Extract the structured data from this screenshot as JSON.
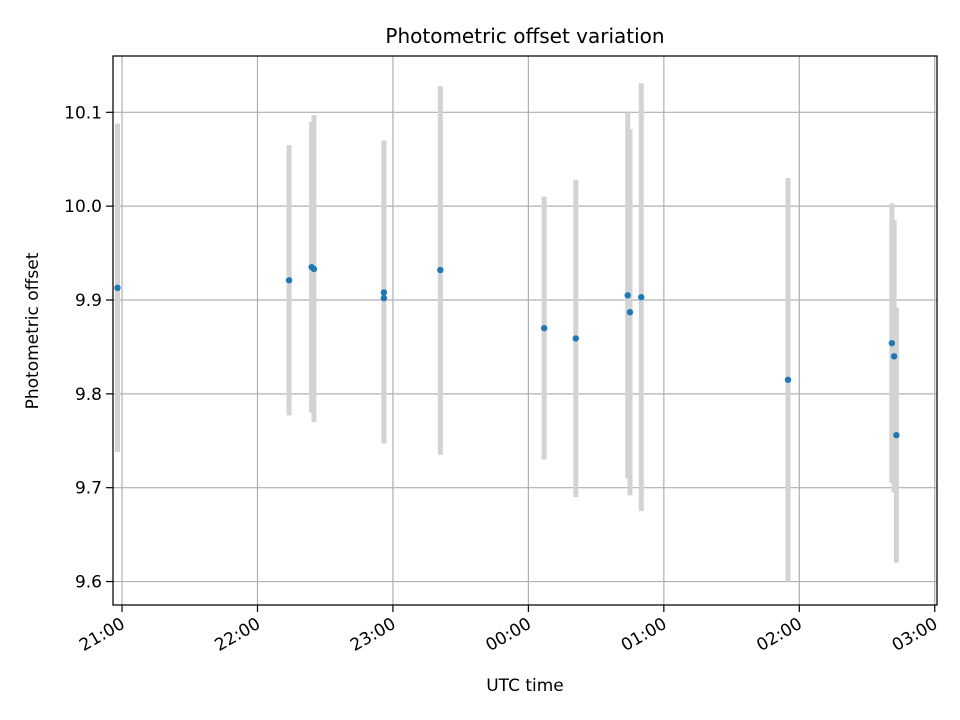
{
  "chart_data": {
    "type": "scatter",
    "title": "Photometric offset variation",
    "xlabel": "UTC time",
    "ylabel": "Photometric offset",
    "xlim": [
      "20:56",
      "03:01"
    ],
    "ylim": [
      9.575,
      10.16
    ],
    "grid": true,
    "x_ticks": [
      "21:00",
      "22:00",
      "23:00",
      "00:00",
      "01:00",
      "02:00",
      "03:00"
    ],
    "y_ticks": [
      "9.6",
      "9.7",
      "9.8",
      "9.9",
      "10.0",
      "10.1"
    ],
    "colors": {
      "marker": "#1f77b4",
      "errorbar": "#d3d3d3",
      "grid": "#b0b0b0",
      "axis": "#000000"
    },
    "points": [
      {
        "time": "20:58",
        "y": 9.913,
        "y_lower": 9.738,
        "y_upper": 10.088
      },
      {
        "time": "22:14",
        "y": 9.921,
        "y_lower": 9.777,
        "y_upper": 10.065
      },
      {
        "time": "22:24",
        "y": 9.935,
        "y_lower": 9.78,
        "y_upper": 10.09
      },
      {
        "time": "22:25",
        "y": 9.933,
        "y_lower": 9.77,
        "y_upper": 10.097
      },
      {
        "time": "22:56",
        "y": 9.908,
        "y_lower": 9.747,
        "y_upper": 10.07
      },
      {
        "time": "22:56",
        "y": 9.902,
        "y_lower": 9.748,
        "y_upper": 10.06
      },
      {
        "time": "23:21",
        "y": 9.932,
        "y_lower": 9.735,
        "y_upper": 10.128
      },
      {
        "time": "00:07",
        "y": 9.87,
        "y_lower": 9.73,
        "y_upper": 10.01
      },
      {
        "time": "00:21",
        "y": 9.859,
        "y_lower": 9.69,
        "y_upper": 10.028
      },
      {
        "time": "00:44",
        "y": 9.905,
        "y_lower": 9.71,
        "y_upper": 10.1
      },
      {
        "time": "00:45",
        "y": 9.887,
        "y_lower": 9.692,
        "y_upper": 10.082
      },
      {
        "time": "00:50",
        "y": 9.903,
        "y_lower": 9.675,
        "y_upper": 10.131
      },
      {
        "time": "01:55",
        "y": 9.815,
        "y_lower": 9.6,
        "y_upper": 10.03
      },
      {
        "time": "02:41",
        "y": 9.854,
        "y_lower": 9.705,
        "y_upper": 10.003
      },
      {
        "time": "02:42",
        "y": 9.84,
        "y_lower": 9.695,
        "y_upper": 9.985
      },
      {
        "time": "02:43",
        "y": 9.756,
        "y_lower": 9.62,
        "y_upper": 9.892
      }
    ]
  }
}
